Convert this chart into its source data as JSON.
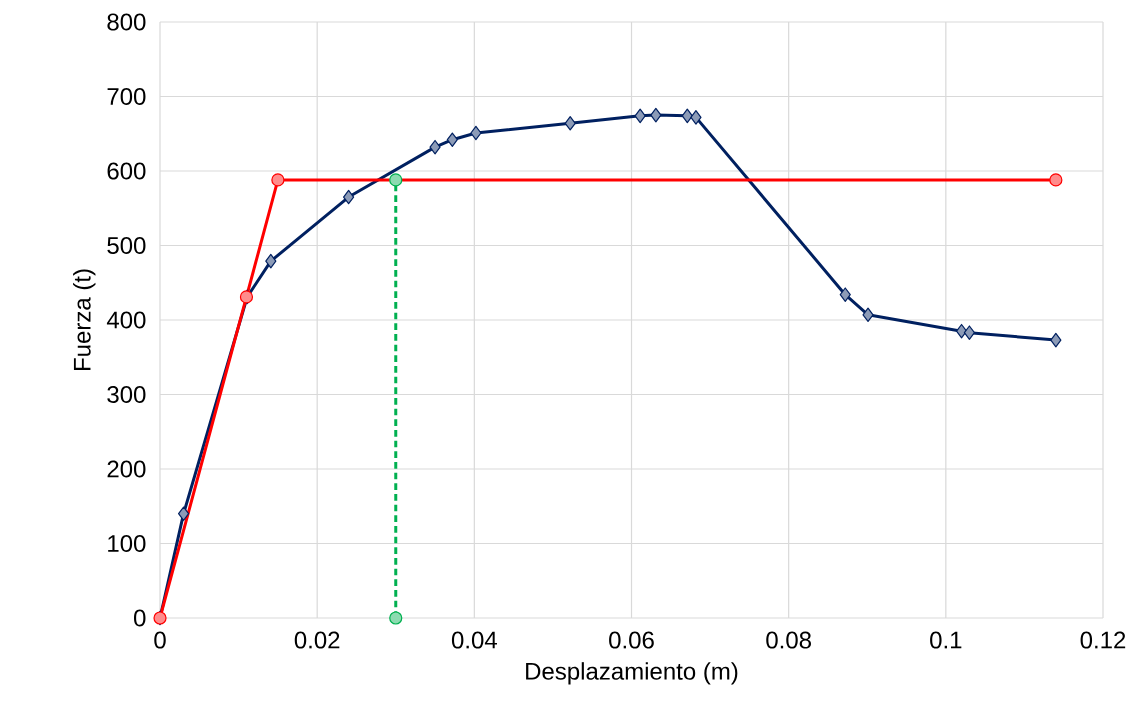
{
  "chart_data": {
    "type": "line",
    "xlabel": "Desplazamiento (m)",
    "ylabel": "Fuerza (t)",
    "xlim": [
      0,
      0.12
    ],
    "xticks": [
      0,
      0.02,
      0.04,
      0.06,
      0.08,
      0.1,
      0.12
    ],
    "ylim": [
      0,
      800
    ],
    "yticks": [
      0,
      100,
      200,
      300,
      400,
      500,
      600,
      700,
      800
    ],
    "grid": true,
    "series": [
      {
        "color": "#002060",
        "marker": "diamond",
        "line_style": "solid",
        "x": [
          0,
          0.003,
          0.0111,
          0.0141,
          0.024,
          0.035,
          0.0372,
          0.0402,
          0.0522,
          0.0611,
          0.0631,
          0.0671,
          0.0682,
          0.0872,
          0.0901,
          0.102,
          0.103,
          0.114
        ],
        "values": [
          0,
          140,
          431,
          479,
          565,
          632,
          642,
          651,
          664,
          674,
          675,
          674,
          672,
          434,
          407,
          385,
          383,
          373
        ]
      },
      {
        "color": "#ff0000",
        "marker": "circle",
        "line_style": "solid",
        "x": [
          0,
          0.011,
          0.015,
          0.114
        ],
        "values": [
          0,
          431,
          588,
          588
        ]
      },
      {
        "color": "#00b050",
        "marker": "circle",
        "line_style": "dashed",
        "x": [
          0.03,
          0.03
        ],
        "values": [
          0,
          588
        ]
      }
    ]
  }
}
